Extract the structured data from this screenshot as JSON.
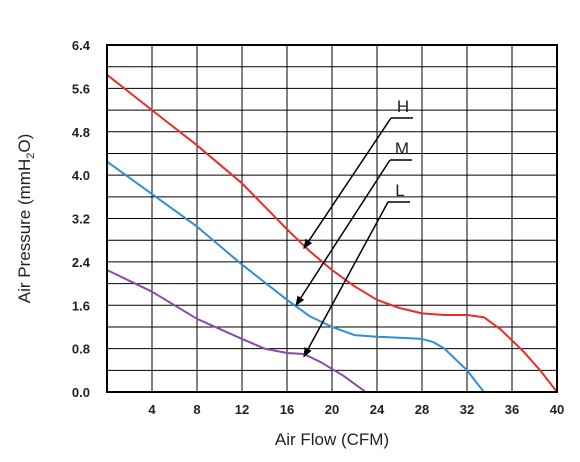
{
  "chart_data": {
    "type": "line",
    "title": "",
    "xlabel": "Air Flow (CFM)",
    "ylabel_parts": [
      "Air Pressure (mmH",
      "2",
      "O)"
    ],
    "xlim": [
      0,
      40
    ],
    "ylim": [
      0,
      6.4
    ],
    "xticks": [
      4,
      8,
      12,
      16,
      20,
      24,
      28,
      32,
      36,
      40
    ],
    "xtick_labels": [
      "4",
      "8",
      "12",
      "16",
      "20",
      "24",
      "28",
      "32",
      "36",
      "40"
    ],
    "yticks": [
      0,
      0.8,
      1.6,
      2.4,
      3.2,
      4.0,
      4.8,
      5.6,
      6.4
    ],
    "ytick_labels": [
      "0.0",
      "0.8",
      "1.6",
      "2.4",
      "3.2",
      "4.0",
      "4.8",
      "5.6",
      "6.4"
    ],
    "x_grid_step": 4,
    "y_grid_step": 0.4,
    "grid": true,
    "series": [
      {
        "name": "H",
        "color": "#ee2a2a",
        "x": [
          0,
          4,
          8,
          12,
          16,
          18,
          20,
          22,
          24,
          26,
          28,
          30,
          32,
          33.5,
          35,
          37,
          38.5,
          40
        ],
        "y": [
          5.85,
          5.2,
          4.55,
          3.85,
          3.0,
          2.6,
          2.25,
          1.95,
          1.7,
          1.55,
          1.45,
          1.42,
          1.42,
          1.38,
          1.15,
          0.75,
          0.4,
          0.0
        ]
      },
      {
        "name": "M",
        "color": "#2e8fd6",
        "x": [
          0,
          4,
          8,
          12,
          16,
          18,
          20,
          22,
          24,
          26,
          28,
          29,
          30,
          32,
          33.5
        ],
        "y": [
          4.25,
          3.65,
          3.05,
          2.35,
          1.7,
          1.4,
          1.2,
          1.05,
          1.02,
          1.0,
          0.98,
          0.92,
          0.8,
          0.4,
          0.0
        ]
      },
      {
        "name": "L",
        "color": "#8c4aa8",
        "x": [
          0,
          4,
          8,
          12,
          14,
          16,
          17.5,
          19,
          21,
          23
        ],
        "y": [
          2.25,
          1.85,
          1.35,
          0.98,
          0.8,
          0.72,
          0.7,
          0.55,
          0.3,
          0.0
        ]
      }
    ],
    "annotations": [
      {
        "text": "H",
        "arrow_tip": [
          17.5,
          2.65
        ]
      },
      {
        "text": "M",
        "arrow_tip": [
          16.8,
          1.6
        ]
      },
      {
        "text": "L",
        "arrow_tip": [
          17.5,
          0.65
        ]
      }
    ]
  }
}
